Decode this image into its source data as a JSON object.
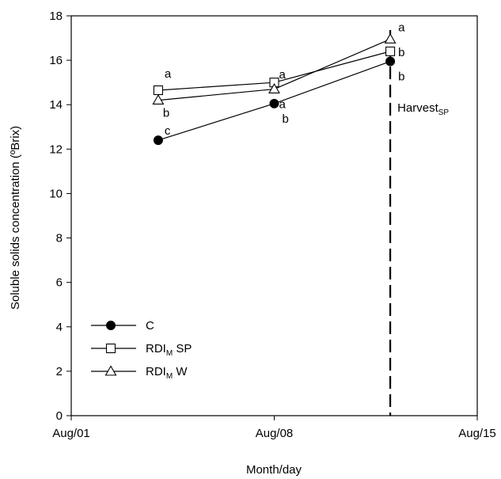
{
  "chart_data": {
    "type": "line",
    "xlabel": "Month/day",
    "ylabel": "Soluble solids concentration (ºBrix)",
    "xlim": [
      "Aug/01",
      "Aug/15"
    ],
    "ylim": [
      0,
      18
    ],
    "x_ticks": [
      "Aug/01",
      "Aug/08",
      "Aug/15"
    ],
    "y_ticks": [
      "0",
      "2",
      "4",
      "6",
      "8",
      "10",
      "12",
      "14",
      "16",
      "18"
    ],
    "grid": false,
    "legend_position": "bottom-left",
    "series": [
      {
        "name": "C",
        "name_sub": "",
        "name_suffix": "",
        "marker": "filled-circle",
        "points": [
          {
            "x": "Aug/04",
            "y": 12.4,
            "label": "c"
          },
          {
            "x": "Aug/08",
            "y": 14.05,
            "label": "b"
          },
          {
            "x": "Aug/12",
            "y": 15.95,
            "label": "b"
          }
        ]
      },
      {
        "name": "RDI",
        "name_sub": "M",
        "name_suffix": " SP",
        "marker": "open-square",
        "points": [
          {
            "x": "Aug/04",
            "y": 14.65,
            "label": "a"
          },
          {
            "x": "Aug/08",
            "y": 15.0,
            "label": "a"
          },
          {
            "x": "Aug/12",
            "y": 16.4,
            "label": "b"
          }
        ]
      },
      {
        "name": "RDI",
        "name_sub": "M",
        "name_suffix": " W",
        "marker": "open-triangle",
        "points": [
          {
            "x": "Aug/04",
            "y": 14.2,
            "label": "b"
          },
          {
            "x": "Aug/08",
            "y": 14.7,
            "label": "a"
          },
          {
            "x": "Aug/12",
            "y": 16.95,
            "label": "a"
          }
        ]
      }
    ],
    "annotations": [
      {
        "type": "vertical-dashed-line",
        "x": "Aug/12",
        "text": "Harvest",
        "text_sub": "SP"
      }
    ]
  }
}
